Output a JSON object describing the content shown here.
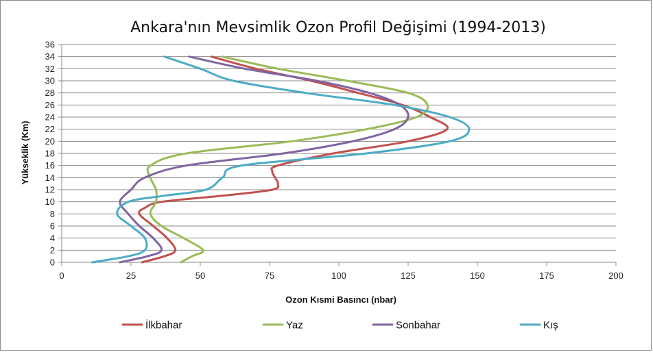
{
  "chart_data": {
    "type": "line",
    "title": "Ankara'nın Mevsimlik Ozon Profil Değişimi (1994-2013)",
    "xlabel": "Ozon Kısmi Basıncı (nbar)",
    "ylabel": "Yükseklik (Km)",
    "xlim": [
      0,
      200
    ],
    "ylim": [
      0,
      36
    ],
    "x_ticks": [
      0,
      25,
      50,
      75,
      100,
      125,
      150,
      175,
      200
    ],
    "y_ticks": [
      0,
      2,
      4,
      6,
      8,
      10,
      12,
      14,
      16,
      18,
      20,
      22,
      24,
      26,
      28,
      30,
      32,
      34,
      36
    ],
    "grid": "horizontal",
    "legend_position": "bottom",
    "series": [
      {
        "name": "İlkbahar",
        "color": "#c0504d",
        "points": [
          [
            29,
            0
          ],
          [
            37,
            1
          ],
          [
            41,
            2
          ],
          [
            38,
            4
          ],
          [
            33,
            6
          ],
          [
            28,
            8
          ],
          [
            30,
            9
          ],
          [
            36,
            10
          ],
          [
            58,
            11
          ],
          [
            76,
            12
          ],
          [
            78,
            13
          ],
          [
            77,
            14
          ],
          [
            76,
            15
          ],
          [
            78,
            16
          ],
          [
            98,
            18
          ],
          [
            125,
            20
          ],
          [
            139,
            22
          ],
          [
            133,
            24
          ],
          [
            123,
            26
          ],
          [
            107,
            28
          ],
          [
            90,
            30
          ],
          [
            70,
            32
          ],
          [
            54,
            34
          ]
        ]
      },
      {
        "name": "Yaz",
        "color": "#9bbb59",
        "points": [
          [
            43,
            0
          ],
          [
            47,
            1
          ],
          [
            51,
            2
          ],
          [
            44,
            4
          ],
          [
            36,
            6
          ],
          [
            32,
            8
          ],
          [
            34,
            10
          ],
          [
            34,
            12
          ],
          [
            32,
            14
          ],
          [
            32,
            16
          ],
          [
            45,
            18
          ],
          [
            83,
            20
          ],
          [
            110,
            22
          ],
          [
            128,
            24
          ],
          [
            132,
            26
          ],
          [
            125,
            28
          ],
          [
            103,
            30
          ],
          [
            78,
            32
          ],
          [
            58,
            34
          ]
        ]
      },
      {
        "name": "Sonbahar",
        "color": "#8064a2",
        "points": [
          [
            21,
            0
          ],
          [
            31,
            1
          ],
          [
            36,
            2
          ],
          [
            33,
            4
          ],
          [
            28,
            6
          ],
          [
            24,
            8
          ],
          [
            21,
            10
          ],
          [
            25,
            12
          ],
          [
            30,
            14
          ],
          [
            45,
            16
          ],
          [
            80,
            18
          ],
          [
            105,
            20
          ],
          [
            120,
            22
          ],
          [
            125,
            24
          ],
          [
            122,
            26
          ],
          [
            111,
            28
          ],
          [
            92,
            30
          ],
          [
            66,
            32
          ],
          [
            46,
            34
          ]
        ]
      },
      {
        "name": "Kış",
        "color": "#4bacc6",
        "points": [
          [
            11,
            0
          ],
          [
            24,
            1
          ],
          [
            30,
            2
          ],
          [
            30,
            4
          ],
          [
            25,
            6
          ],
          [
            20,
            8
          ],
          [
            24,
            10
          ],
          [
            37,
            11
          ],
          [
            52,
            12
          ],
          [
            58,
            14
          ],
          [
            65,
            16
          ],
          [
            110,
            18
          ],
          [
            140,
            20
          ],
          [
            147,
            22
          ],
          [
            140,
            24
          ],
          [
            120,
            26
          ],
          [
            88,
            28
          ],
          [
            62,
            30
          ],
          [
            50,
            32
          ],
          [
            37,
            34
          ]
        ]
      }
    ]
  }
}
